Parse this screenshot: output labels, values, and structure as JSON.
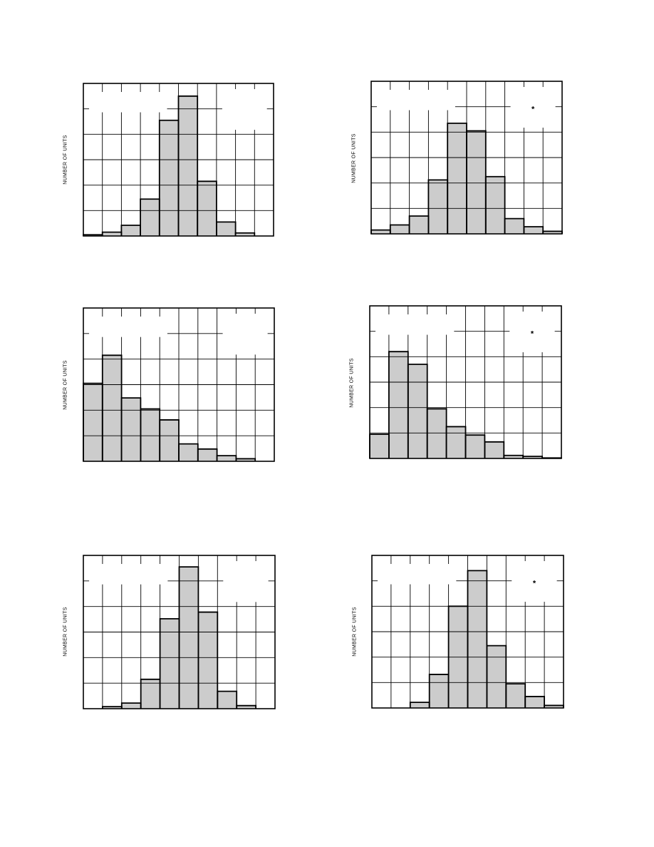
{
  "y_axis_label": "NUMBER OF UNITS",
  "legend_marker": "*",
  "chart_data": [
    {
      "type": "bar",
      "title": "",
      "xlabel": "",
      "ylabel": "NUMBER OF UNITS",
      "ylim": [
        0,
        6
      ],
      "grid": true,
      "legend": "top-right",
      "legend_marker": "",
      "values": [
        0.05,
        0.15,
        0.42,
        1.45,
        4.55,
        5.5,
        2.15,
        0.55,
        0.12,
        0
      ]
    },
    {
      "type": "bar",
      "title": "",
      "xlabel": "",
      "ylabel": "NUMBER OF UNITS",
      "ylim": [
        0,
        6
      ],
      "grid": true,
      "legend": "top-right",
      "legend_marker": "*",
      "values": [
        0.15,
        0.35,
        0.7,
        2.12,
        4.35,
        4.05,
        2.25,
        0.6,
        0.28,
        0.1
      ]
    },
    {
      "type": "bar",
      "title": "",
      "xlabel": "",
      "ylabel": "NUMBER OF UNITS",
      "ylim": [
        0,
        6
      ],
      "grid": true,
      "legend": "top-right",
      "legend_marker": "",
      "values": [
        3.05,
        4.15,
        2.48,
        2.05,
        1.62,
        0.68,
        0.48,
        0.22,
        0.1,
        0
      ]
    },
    {
      "type": "bar",
      "title": "",
      "xlabel": "",
      "ylabel": "NUMBER OF UNITS",
      "ylim": [
        0,
        6
      ],
      "grid": true,
      "legend": "top-right",
      "legend_marker": "*",
      "values": [
        0.95,
        4.2,
        3.7,
        1.95,
        1.25,
        0.92,
        0.65,
        0.12,
        0.08,
        0.02
      ]
    },
    {
      "type": "bar",
      "title": "",
      "xlabel": "",
      "ylabel": "NUMBER OF UNITS",
      "ylim": [
        0,
        6
      ],
      "grid": true,
      "legend": "top-right",
      "legend_marker": "",
      "values": [
        0,
        0.08,
        0.22,
        1.15,
        3.52,
        5.55,
        3.78,
        0.68,
        0.12,
        0
      ]
    },
    {
      "type": "bar",
      "title": "",
      "xlabel": "",
      "ylabel": "NUMBER OF UNITS",
      "ylim": [
        0,
        6
      ],
      "grid": true,
      "legend": "top-right",
      "legend_marker": "*",
      "values": [
        0,
        0,
        0.22,
        1.32,
        4.0,
        5.4,
        2.45,
        0.95,
        0.45,
        0.1
      ]
    }
  ]
}
